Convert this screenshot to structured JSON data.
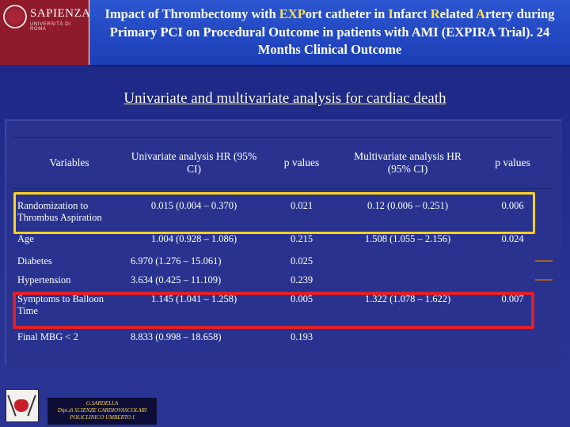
{
  "header": {
    "logo_name": "SAPIENZA",
    "logo_subtitle": "UNIVERSITÀ DI ROMA",
    "title_parts": [
      {
        "text": "Impact of Thrombectomy with ",
        "hl": false
      },
      {
        "text": "EXP",
        "hl": true
      },
      {
        "text": "ort catheter in ",
        "hl": false
      },
      {
        "text": "I",
        "hl": true
      },
      {
        "text": "nfarct ",
        "hl": false
      },
      {
        "text": "R",
        "hl": true
      },
      {
        "text": "elated ",
        "hl": false
      },
      {
        "text": "A",
        "hl": true
      },
      {
        "text": "rtery during Primary PCI on Procedural Outcome in patients with AMI (EXPIRA Trial). 24 Months Clinical Outcome",
        "hl": false
      }
    ]
  },
  "subtitle": "Univariate and multivariate analysis for  cardiac death",
  "table": {
    "headers": {
      "variables": "Variables",
      "univariate": "Univariate analysis HR (95% CI)",
      "p_univariate": "p values",
      "multivariate": "Multivariate analysis HR (95% CI)",
      "p_multivariate": "p values"
    },
    "rows": [
      {
        "variable": "Randomization to Thrombus Aspiration",
        "uni": "0.015 (0.004 – 0.370)",
        "p_uni": "0.021",
        "multi": "0.12 (0.006 – 0.251)",
        "p_multi": "0.006"
      },
      {
        "variable": "Age",
        "uni": "1.004 (0.928 – 1.086)",
        "p_uni": "0.215",
        "multi": "1.508 (1.055 – 2.156)",
        "p_multi": "0.024"
      },
      {
        "variable": "Diabetes",
        "uni": "6.970 (1.276 – 15.061)",
        "p_uni": "0.025",
        "multi": "",
        "p_multi": ""
      },
      {
        "variable": "Hypertension",
        "uni": "3.634 (0.425 – 11.109)",
        "p_uni": "0.239",
        "multi": "",
        "p_multi": ""
      },
      {
        "variable": "Symptoms to Balloon Time",
        "uni": "1.145 (1.041 – 1.258)",
        "p_uni": "0.005",
        "multi": "1.322 (1.078 – 1.622)",
        "p_multi": "0.007"
      },
      {
        "variable": "Final MBG < 2",
        "uni": "8.833 (0.998 – 18.658)",
        "p_uni": "0.193",
        "multi": "",
        "p_multi": ""
      }
    ]
  },
  "footer": {
    "line1": "G.SARDELLA",
    "line2": "Dipt.di SCIENZE CARDIOVASCOLARI",
    "line3": "POLICLINICO UMBERTO I"
  },
  "colors": {
    "background": "#1e2a86",
    "title_box": "#2347c4",
    "highlight_yellow": "#ffd21f",
    "highlight_red": "#e0202a",
    "logo_red": "#8e1a2a"
  }
}
